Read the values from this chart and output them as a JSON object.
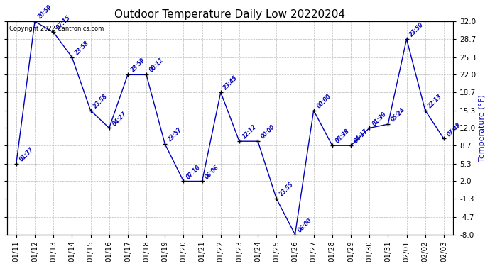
{
  "title": "Outdoor Temperature Daily Low 20220204",
  "ylabel": "Temperature (°F)",
  "copyright": "Copyright 2022-Cantronics.com",
  "background_color": "#ffffff",
  "plot_bg_color": "#ffffff",
  "line_color": "#0000bb",
  "marker_color": "#000000",
  "grid_color": "#bbbbbb",
  "dates": [
    "01/11",
    "01/12",
    "01/13",
    "01/14",
    "01/15",
    "01/16",
    "01/17",
    "01/18",
    "01/19",
    "01/20",
    "01/21",
    "01/22",
    "01/23",
    "01/24",
    "01/25",
    "01/26",
    "01/27",
    "01/28",
    "01/29",
    "01/30",
    "01/31",
    "02/01",
    "02/02",
    "02/03"
  ],
  "values": [
    5.3,
    32.0,
    30.0,
    25.3,
    15.3,
    12.0,
    22.0,
    22.0,
    9.0,
    2.0,
    2.0,
    18.7,
    9.5,
    9.5,
    -1.3,
    -8.0,
    15.3,
    8.7,
    8.7,
    12.0,
    12.7,
    28.7,
    15.3,
    10.0
  ],
  "time_labels": [
    "01:37",
    "20:59",
    "07:15",
    "23:58",
    "23:58",
    "04:27",
    "23:59",
    "00:12",
    "23:57",
    "07:10",
    "06:06",
    "23:45",
    "12:12",
    "00:00",
    "23:55",
    "06:00",
    "00:00",
    "08:38",
    "04:17",
    "01:30",
    "05:24",
    "23:50",
    "22:13",
    "07:48"
  ],
  "ylim": [
    -8.0,
    32.0
  ],
  "yticks": [
    -8.0,
    -4.7,
    -1.3,
    2.0,
    5.3,
    8.7,
    12.0,
    15.3,
    18.7,
    22.0,
    25.3,
    28.7,
    32.0
  ],
  "title_fontsize": 11,
  "label_fontsize": 8,
  "tick_fontsize": 7.5,
  "copyright_fontsize": 6
}
